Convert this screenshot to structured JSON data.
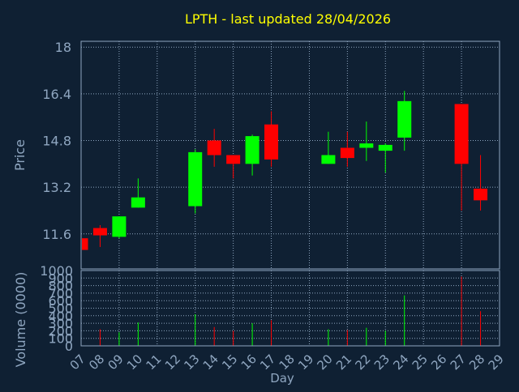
{
  "chart_data": {
    "type": "candlestick",
    "title": "LPTH - last updated 28/04/2026",
    "xlabel": "Day",
    "colors": {
      "background": "#0f2033",
      "plot_background": "#0f2033",
      "grid": "#8fa6c0",
      "axis_text": "#8fa6c0",
      "title": "#ffff00",
      "up": "#00ff00",
      "down": "#ff0000"
    },
    "x_ticks": [
      "07",
      "08",
      "09",
      "10",
      "11",
      "12",
      "13",
      "14",
      "15",
      "16",
      "17",
      "18",
      "19",
      "20",
      "21",
      "22",
      "23",
      "24",
      "25",
      "26",
      "27",
      "28",
      "29"
    ],
    "price_panel": {
      "ylabel": "Price",
      "ylim": [
        10.4,
        18.2
      ],
      "y_ticks": [
        "18",
        "16.4",
        "14.8",
        "13.2",
        "11.6"
      ],
      "y_tick_values": [
        18,
        16.4,
        14.8,
        13.2,
        11.6
      ],
      "grid": true
    },
    "volume_panel": {
      "ylabel": "Volume (0000)",
      "ylim": [
        0,
        1000
      ],
      "y_ticks": [
        "1000",
        "900",
        "800",
        "700",
        "600",
        "500",
        "400",
        "300",
        "200",
        "100",
        "0"
      ],
      "y_tick_values": [
        1000,
        900,
        800,
        700,
        600,
        500,
        400,
        300,
        200,
        100,
        0
      ],
      "grid": true
    },
    "candles": [
      {
        "day": 7,
        "open": 11.45,
        "high": 11.5,
        "low": 11.0,
        "close": 11.05,
        "volume": 0
      },
      {
        "day": 8,
        "open": 11.8,
        "high": 11.9,
        "low": 11.15,
        "close": 11.55,
        "volume": 220
      },
      {
        "day": 9,
        "open": 11.5,
        "high": 12.2,
        "low": 11.45,
        "close": 12.2,
        "volume": 180
      },
      {
        "day": 10,
        "open": 12.5,
        "high": 13.5,
        "low": 12.5,
        "close": 12.85,
        "volume": 310
      },
      {
        "day": 13,
        "open": 12.55,
        "high": 14.5,
        "low": 12.3,
        "close": 14.4,
        "volume": 420
      },
      {
        "day": 14,
        "open": 14.8,
        "high": 15.2,
        "low": 13.9,
        "close": 14.3,
        "volume": 250
      },
      {
        "day": 15,
        "open": 14.3,
        "high": 14.3,
        "low": 13.5,
        "close": 14.0,
        "volume": 200
      },
      {
        "day": 16,
        "open": 14.0,
        "high": 15.0,
        "low": 13.6,
        "close": 14.95,
        "volume": 300
      },
      {
        "day": 17,
        "open": 15.35,
        "high": 15.8,
        "low": 13.9,
        "close": 14.15,
        "volume": 340
      },
      {
        "day": 20,
        "open": 14.0,
        "high": 15.1,
        "low": 14.0,
        "close": 14.3,
        "volume": 220
      },
      {
        "day": 21,
        "open": 14.55,
        "high": 15.1,
        "low": 13.9,
        "close": 14.2,
        "volume": 210
      },
      {
        "day": 22,
        "open": 14.55,
        "high": 15.45,
        "low": 14.1,
        "close": 14.7,
        "volume": 240
      },
      {
        "day": 23,
        "open": 14.45,
        "high": 14.7,
        "low": 13.7,
        "close": 14.65,
        "volume": 200
      },
      {
        "day": 24,
        "open": 14.9,
        "high": 16.5,
        "low": 14.45,
        "close": 16.15,
        "volume": 670
      },
      {
        "day": 27,
        "open": 16.05,
        "high": 16.05,
        "low": 12.4,
        "close": 14.0,
        "volume": 920
      },
      {
        "day": 28,
        "open": 13.15,
        "high": 14.3,
        "low": 12.4,
        "close": 12.75,
        "volume": 460
      }
    ]
  }
}
